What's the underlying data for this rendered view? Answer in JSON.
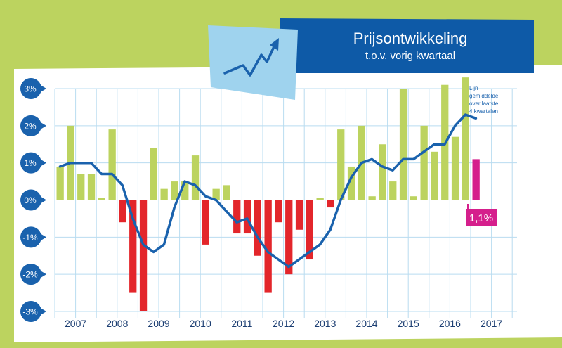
{
  "title": "Prijsontwikkeling",
  "subtitle": "t.o.v. vorig kwartaal",
  "colors": {
    "frame": "#bcd35f",
    "positive_bar": "#bcd35f",
    "negative_bar": "#e3262b",
    "latest_bar": "#d51f8c",
    "line": "#1a62ad",
    "grid": "#b9dcf0",
    "axis_badge": "#1a62ad",
    "title_box": "#0e5aa7",
    "icon_box": "#9fd3ee"
  },
  "icon": "trend-up-arrow-icon",
  "chart_data": {
    "type": "bar",
    "ylim": [
      -3,
      3
    ],
    "y_ticks": [
      "3%",
      "2%",
      "1%",
      "0%",
      "-1%",
      "-2%",
      "-3%"
    ],
    "years": [
      "2007",
      "2008",
      "2009",
      "2010",
      "2011",
      "2012",
      "2013",
      "2014",
      "2015",
      "2016",
      "2017"
    ],
    "grid": true,
    "series": [
      {
        "kind": "bar",
        "values": [
          0.9,
          2.0,
          0.7,
          0.7,
          0.05,
          1.9,
          -0.6,
          -2.5,
          -3.0,
          1.4,
          0.3,
          0.5,
          0.5,
          1.2,
          -1.2,
          0.3,
          0.4,
          -0.9,
          -0.9,
          -1.5,
          -2.5,
          -0.6,
          -2.0,
          -0.8,
          -1.6,
          0.05,
          -0.2,
          1.9,
          0.9,
          2.0,
          0.1,
          1.5,
          0.5,
          3.0,
          0.1,
          2.0,
          1.3,
          3.1,
          1.7,
          3.3,
          1.1
        ]
      },
      {
        "kind": "line",
        "name": "Lijn gemiddelde over laatste 4 kwartalen",
        "values": [
          0.9,
          1.0,
          1.0,
          1.0,
          0.7,
          0.7,
          0.4,
          -0.5,
          -1.2,
          -1.4,
          -1.2,
          -0.2,
          0.5,
          0.4,
          0.1,
          0.0,
          -0.3,
          -0.6,
          -0.5,
          -1.0,
          -1.4,
          -1.6,
          -1.8,
          -1.6,
          -1.4,
          -1.2,
          -0.8,
          0.0,
          0.6,
          1.0,
          1.1,
          0.9,
          0.8,
          1.1,
          1.1,
          1.3,
          1.5,
          1.5,
          2.0,
          2.3,
          2.2
        ]
      }
    ],
    "legend_label": "Lijn gemiddelde over laatste 4 kwartalen",
    "annotation": "1,1%"
  }
}
